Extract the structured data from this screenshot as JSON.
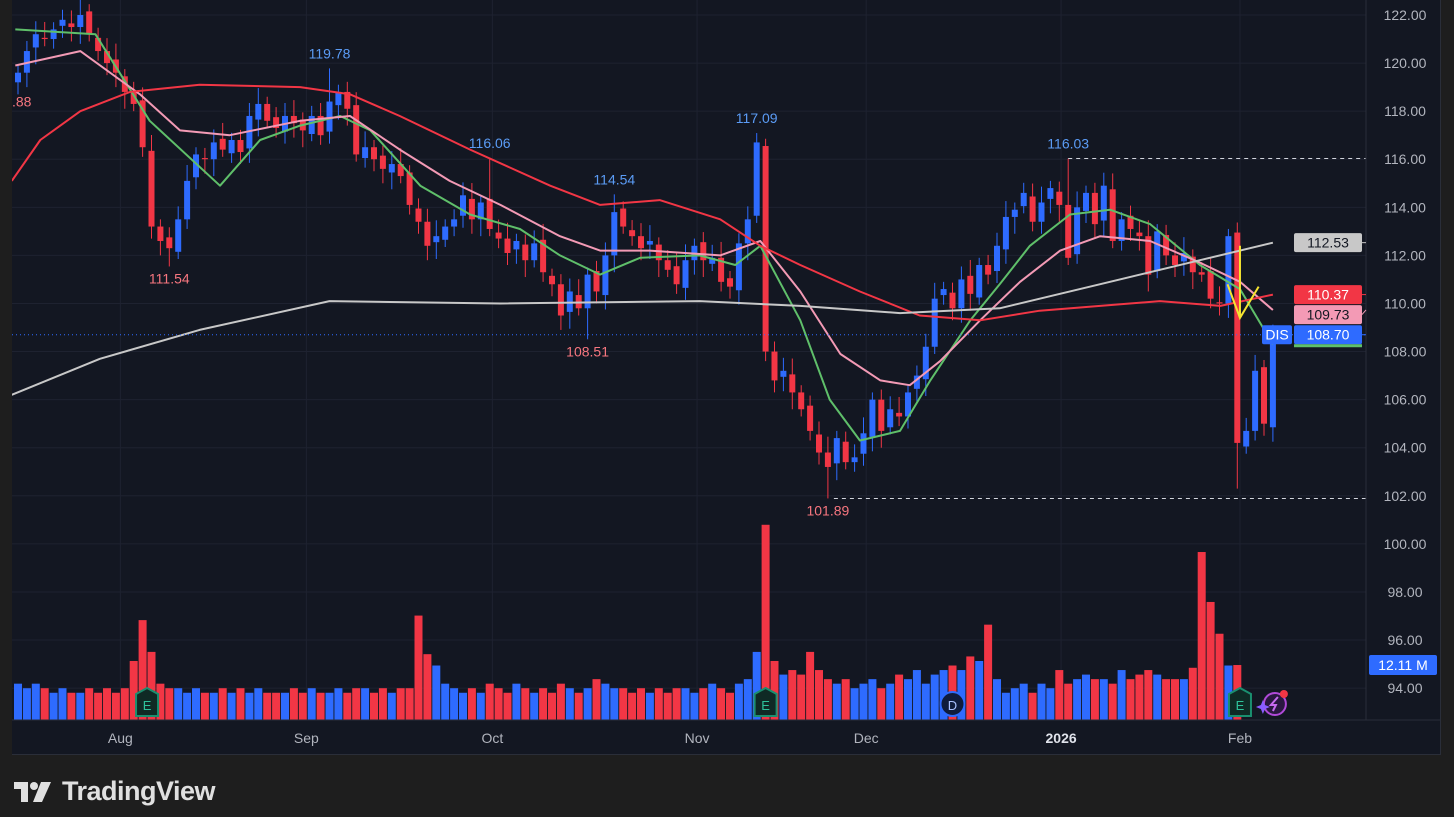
{
  "symbol": "DIS",
  "brand": "TradingView",
  "colors": {
    "up": "#2e6bff",
    "down": "#f23645",
    "bg": "#131722",
    "grid": "#1e2230",
    "ma_fast": "#5fbf6a",
    "ma_mid": "#f39ab5",
    "ma_slow": "#f23645",
    "ma_long": "#c8c8c8",
    "arrow": "#f5e431"
  },
  "chart_data": {
    "type": "candlestick",
    "title": "DIS",
    "ylim": [
      93,
      122.6
    ],
    "y_ticks": [
      "122.00",
      "120.00",
      "118.00",
      "116.00",
      "114.00",
      "112.00",
      "110.00",
      "108.00",
      "106.00",
      "104.00",
      "102.00",
      "100.00",
      "98.00",
      "96.00",
      "94.00"
    ],
    "x_ticks": [
      {
        "label": "Aug",
        "bar": 11.5
      },
      {
        "label": "Sep",
        "bar": 32.4
      },
      {
        "label": "Oct",
        "bar": 53.3
      },
      {
        "label": "Nov",
        "bar": 76.3
      },
      {
        "label": "Dec",
        "bar": 95.3
      },
      {
        "label": "2026",
        "bar": 117.2,
        "bold": true
      },
      {
        "label": "Feb",
        "bar": 137.3
      }
    ],
    "close": [
      119.6,
      120.5,
      121.2,
      121.0,
      121.4,
      121.8,
      121.5,
      122.0,
      121.2,
      120.5,
      120.0,
      119.6,
      118.8,
      118.3,
      116.5,
      113.2,
      112.6,
      112.3,
      113.5,
      115.1,
      116.2,
      116.0,
      116.7,
      116.4,
      116.8,
      116.3,
      117.8,
      118.3,
      117.6,
      117.3,
      117.8,
      117.5,
      117.2,
      117.8,
      117.0,
      118.4,
      118.8,
      118.1,
      116.2,
      116.5,
      116.0,
      115.6,
      115.8,
      115.3,
      114.1,
      113.4,
      112.4,
      112.8,
      113.2,
      113.5,
      114.5,
      113.5,
      114.2,
      113.1,
      112.7,
      112.1,
      112.6,
      111.8,
      112.5,
      111.3,
      110.8,
      109.5,
      110.5,
      109.8,
      111.2,
      110.5,
      112.0,
      113.8,
      113.2,
      112.8,
      112.3,
      112.6,
      111.8,
      111.4,
      110.8,
      111.8,
      112.4,
      111.8,
      111.9,
      110.9,
      110.7,
      112.5,
      113.5,
      116.7,
      108.0,
      106.8,
      107.2,
      106.3,
      105.6,
      104.7,
      103.8,
      103.2,
      104.4,
      103.4,
      103.6,
      104.6,
      106.0,
      104.7,
      105.6,
      105.3,
      106.3,
      107.0,
      108.2,
      110.2,
      110.6,
      109.8,
      111.0,
      110.4,
      111.6,
      111.2,
      112.4,
      113.6,
      113.9,
      114.6,
      113.4,
      114.2,
      114.8,
      114.1,
      111.9,
      114.0,
      114.6,
      113.3,
      114.9,
      112.6,
      113.5,
      113.1,
      112.8,
      111.2,
      113.0,
      112.0,
      111.6,
      112.1,
      111.3,
      111.2,
      110.2,
      110.0,
      112.8,
      104.2,
      104.7,
      107.2,
      105.0,
      108.7
    ],
    "volume_millions": [
      8,
      7,
      8,
      7,
      6,
      7,
      6,
      6,
      7,
      6,
      7,
      6,
      7,
      13,
      22,
      15,
      8,
      7,
      7,
      6,
      7,
      6,
      6,
      7,
      6,
      7,
      6,
      7,
      6,
      6,
      6,
      7,
      6,
      7,
      6,
      6,
      7,
      6,
      7,
      7,
      6,
      7,
      6,
      7,
      7,
      23,
      14.5,
      12,
      8,
      7,
      6,
      7,
      6,
      8,
      7,
      6,
      8,
      7,
      6,
      7,
      6,
      8,
      7,
      6,
      7,
      9,
      8,
      7,
      7,
      6,
      7,
      6,
      7,
      6,
      7,
      7,
      6,
      7,
      8,
      7,
      6,
      8,
      9,
      15,
      43,
      13,
      10,
      11,
      10,
      15,
      11,
      9,
      8,
      9,
      7,
      8,
      9,
      7,
      8,
      10,
      9,
      11,
      8,
      10,
      11,
      12,
      11,
      14,
      13,
      21,
      9,
      6,
      7,
      8,
      6,
      8,
      7,
      11,
      8,
      9,
      10,
      9,
      9,
      8,
      11,
      9,
      10,
      11,
      10,
      9,
      9,
      9,
      11.5,
      37,
      26,
      19,
      12,
      12.11
    ],
    "moving_averages": [
      {
        "name": "ma_fast",
        "color_key": "ma_fast",
        "last": "108.70",
        "points": [
          [
            -0.3,
            121.4
          ],
          [
            8.7,
            121.2
          ],
          [
            14.8,
            117.6
          ],
          [
            22.7,
            114.9
          ],
          [
            27.2,
            116.8
          ],
          [
            31.7,
            117.4
          ],
          [
            36.2,
            117.8
          ],
          [
            39.6,
            117.2
          ],
          [
            45.2,
            114.9
          ],
          [
            50.8,
            113.7
          ],
          [
            56.4,
            113.1
          ],
          [
            60.9,
            112.0
          ],
          [
            65.4,
            111.2
          ],
          [
            69.9,
            111.9
          ],
          [
            76.6,
            112.0
          ],
          [
            80.6,
            111.6
          ],
          [
            83.4,
            112.4
          ],
          [
            87.9,
            109.3
          ],
          [
            91.2,
            106.0
          ],
          [
            94.6,
            104.3
          ],
          [
            99.1,
            104.7
          ],
          [
            102.5,
            106.8
          ],
          [
            107,
            109.3
          ],
          [
            110.3,
            110.8
          ],
          [
            113.7,
            112.4
          ],
          [
            118.2,
            113.7
          ],
          [
            122.7,
            113.9
          ],
          [
            127.2,
            113.3
          ],
          [
            132.8,
            111.6
          ],
          [
            137.3,
            110.6
          ],
          [
            141,
            108.3
          ]
        ]
      },
      {
        "name": "ma_mid",
        "color_key": "ma_mid",
        "last": "109.73",
        "points": [
          [
            -0.3,
            119.9
          ],
          [
            7,
            120.5
          ],
          [
            13.7,
            118.7
          ],
          [
            18.2,
            117.2
          ],
          [
            23.8,
            117.0
          ],
          [
            31.7,
            117.6
          ],
          [
            37.3,
            117.8
          ],
          [
            42.9,
            116.4
          ],
          [
            48.5,
            115.1
          ],
          [
            54.2,
            114.1
          ],
          [
            60.9,
            112.8
          ],
          [
            65.4,
            112.2
          ],
          [
            71,
            112.2
          ],
          [
            78.9,
            112.0
          ],
          [
            83.4,
            112.6
          ],
          [
            87.9,
            110.5
          ],
          [
            92.4,
            107.9
          ],
          [
            96.9,
            106.8
          ],
          [
            100.2,
            106.6
          ],
          [
            103.6,
            107.6
          ],
          [
            108.1,
            109.3
          ],
          [
            112.6,
            110.9
          ],
          [
            117.1,
            112.2
          ],
          [
            121.6,
            112.8
          ],
          [
            127.2,
            112.6
          ],
          [
            132.8,
            111.7
          ],
          [
            137.3,
            110.9
          ],
          [
            141,
            109.73
          ]
        ]
      },
      {
        "name": "ma_slow",
        "color_key": "ma_slow",
        "last": "110.37",
        "points": [
          [
            -0.7,
            115.1
          ],
          [
            2.5,
            116.8
          ],
          [
            7,
            118.0
          ],
          [
            12.6,
            118.8
          ],
          [
            20.4,
            119.1
          ],
          [
            31.7,
            119.0
          ],
          [
            37.3,
            118.7
          ],
          [
            42.9,
            117.8
          ],
          [
            50.8,
            116.4
          ],
          [
            59.8,
            114.9
          ],
          [
            65.4,
            114.1
          ],
          [
            72.1,
            114.3
          ],
          [
            78.9,
            113.5
          ],
          [
            83.4,
            112.4
          ],
          [
            87.9,
            111.6
          ],
          [
            94.6,
            110.5
          ],
          [
            101.3,
            109.5
          ],
          [
            108.1,
            109.3
          ],
          [
            114.8,
            109.7
          ],
          [
            121.6,
            109.9
          ],
          [
            128.3,
            110.1
          ],
          [
            135.1,
            109.9
          ],
          [
            141,
            110.37
          ]
        ]
      },
      {
        "name": "ma_long",
        "color_key": "ma_long",
        "last": "112.53",
        "points": [
          [
            -0.7,
            106.2
          ],
          [
            9.2,
            107.7
          ],
          [
            20.4,
            108.9
          ],
          [
            35,
            110.1
          ],
          [
            54.2,
            110.0
          ],
          [
            76.6,
            110.1
          ],
          [
            87.9,
            109.9
          ],
          [
            99.1,
            109.6
          ],
          [
            110.3,
            109.8
          ],
          [
            121.6,
            110.8
          ],
          [
            132.8,
            111.8
          ],
          [
            141,
            112.53
          ]
        ]
      }
    ],
    "annotations": [
      {
        "bar": 35,
        "value": 119.78,
        "label": "119.78",
        "kind": "high"
      },
      {
        "bar": 53,
        "value": 116.06,
        "label": "116.06",
        "kind": "high"
      },
      {
        "bar": 67,
        "value": 114.54,
        "label": "114.54",
        "kind": "high"
      },
      {
        "bar": 83,
        "value": 117.09,
        "label": "117.09",
        "kind": "high"
      },
      {
        "bar": 118,
        "value": 116.03,
        "label": "116.03",
        "kind": "high"
      },
      {
        "bar": 17,
        "value": 111.54,
        "label": "111.54",
        "kind": "low"
      },
      {
        "bar": 64,
        "value": 108.51,
        "label": "108.51",
        "kind": "low"
      },
      {
        "bar": 91,
        "value": 101.89,
        "label": "101.89",
        "kind": "low"
      },
      {
        "bar": 137,
        "value": 102.3,
        "label": "",
        "kind": "low"
      },
      {
        "bar": -0.5,
        "value": 118.9,
        "label": ".88",
        "kind": "low"
      }
    ],
    "price_badges": [
      {
        "value": 112.53,
        "label": "112.53",
        "color_key": "ma_long"
      },
      {
        "value": 110.37,
        "label": "110.37",
        "color_key": "ma_slow"
      },
      {
        "value": 109.73,
        "label": "109.73",
        "color_key": "ma_mid"
      },
      {
        "value": 108.7,
        "label": "108.70",
        "color_key": "up"
      }
    ],
    "volume_badge": "12.11 M",
    "events": [
      {
        "bar": 14.5,
        "label": "E"
      },
      {
        "bar": 84,
        "label": "E"
      },
      {
        "bar": 105,
        "label": "D"
      },
      {
        "bar": 137.3,
        "label": "E"
      }
    ]
  }
}
